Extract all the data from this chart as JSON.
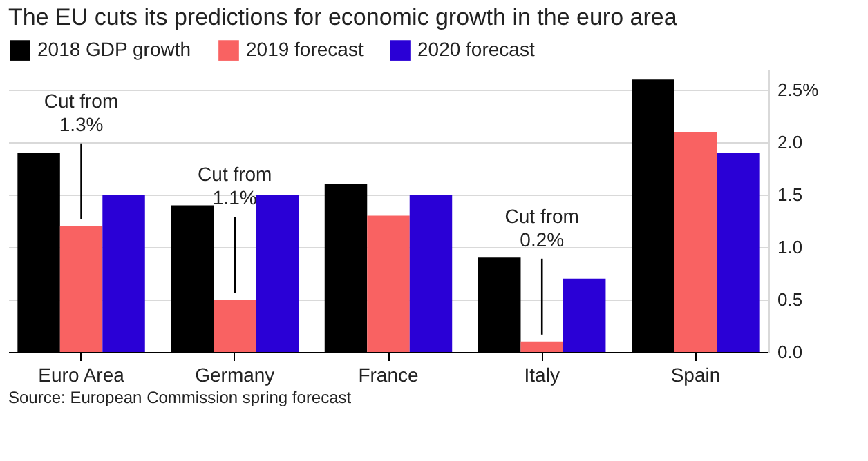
{
  "chart_data": {
    "type": "bar",
    "title": "The EU cuts its predictions for economic growth in the euro area",
    "categories": [
      "Euro Area",
      "Germany",
      "France",
      "Italy",
      "Spain"
    ],
    "series": [
      {
        "name": "2018 GDP growth",
        "color": "#000000",
        "values": [
          1.9,
          1.4,
          1.6,
          0.9,
          2.6
        ]
      },
      {
        "name": "2019 forecast",
        "color": "#f96262",
        "values": [
          1.2,
          0.5,
          1.3,
          0.1,
          2.1
        ]
      },
      {
        "name": "2020 forecast",
        "color": "#2a00d6",
        "values": [
          1.5,
          1.5,
          1.5,
          0.7,
          1.9
        ]
      }
    ],
    "ylim": [
      0,
      2.7
    ],
    "yticks": [
      {
        "value": 0,
        "label": "0.0"
      },
      {
        "value": 0.5,
        "label": "0.5"
      },
      {
        "value": 1,
        "label": "1.0"
      },
      {
        "value": 1.5,
        "label": "1.5"
      },
      {
        "value": 2,
        "label": "2.0"
      },
      {
        "value": 2.5,
        "label": "2.5%"
      }
    ],
    "grid": "y",
    "legend": "top left",
    "annotations": [
      {
        "text": "Cut from 1.3%",
        "x": "Euro Area",
        "y": 1.2
      },
      {
        "text": "Cut from 1.1%",
        "x": "Germany",
        "y": 0.5
      },
      {
        "text": "Cut from 0.2%",
        "x": "Italy",
        "y": 0.1
      },
      "Source: European Commission spring forecast"
    ]
  }
}
